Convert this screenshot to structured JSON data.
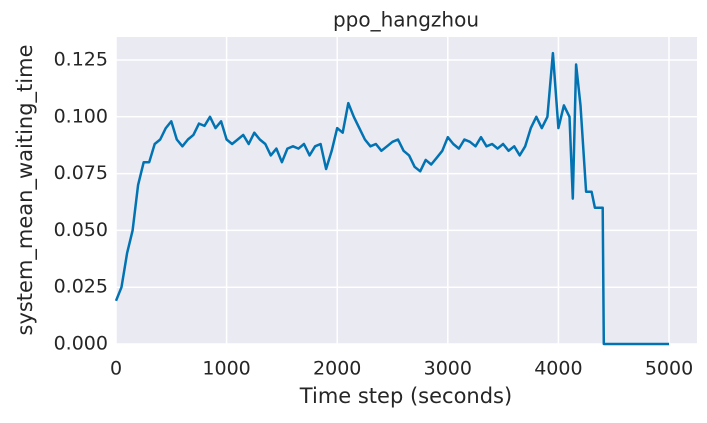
{
  "chart_data": {
    "type": "line",
    "title": "ppo_hangzhou",
    "x_label": "Time step (seconds)",
    "y_label": "system_mean_waiting_time",
    "x": [
      0,
      50,
      100,
      150,
      200,
      250,
      300,
      350,
      400,
      450,
      500,
      550,
      600,
      650,
      700,
      750,
      800,
      850,
      900,
      950,
      1000,
      1050,
      1100,
      1150,
      1200,
      1250,
      1300,
      1350,
      1400,
      1450,
      1500,
      1550,
      1600,
      1650,
      1700,
      1750,
      1800,
      1850,
      1900,
      1950,
      2000,
      2050,
      2100,
      2150,
      2200,
      2250,
      2300,
      2350,
      2400,
      2450,
      2500,
      2550,
      2600,
      2650,
      2700,
      2750,
      2800,
      2850,
      2900,
      2950,
      3000,
      3050,
      3100,
      3150,
      3200,
      3250,
      3300,
      3350,
      3400,
      3450,
      3500,
      3550,
      3600,
      3650,
      3700,
      3750,
      3800,
      3850,
      3900,
      3950,
      4000,
      4050,
      4100,
      4130,
      4160,
      4200,
      4250,
      4300,
      4330,
      4400,
      4410,
      5000
    ],
    "series": [
      {
        "name": "ppo_hangzhou",
        "color": "#0173b2",
        "values": [
          0.019,
          0.025,
          0.04,
          0.05,
          0.07,
          0.08,
          0.08,
          0.088,
          0.09,
          0.095,
          0.098,
          0.09,
          0.087,
          0.09,
          0.092,
          0.097,
          0.096,
          0.1,
          0.095,
          0.098,
          0.09,
          0.088,
          0.09,
          0.092,
          0.088,
          0.093,
          0.09,
          0.088,
          0.083,
          0.086,
          0.08,
          0.086,
          0.087,
          0.086,
          0.088,
          0.083,
          0.087,
          0.088,
          0.077,
          0.085,
          0.095,
          0.093,
          0.106,
          0.1,
          0.095,
          0.09,
          0.087,
          0.088,
          0.085,
          0.087,
          0.089,
          0.09,
          0.085,
          0.083,
          0.078,
          0.076,
          0.081,
          0.079,
          0.082,
          0.085,
          0.091,
          0.088,
          0.086,
          0.09,
          0.089,
          0.087,
          0.091,
          0.087,
          0.088,
          0.086,
          0.088,
          0.085,
          0.087,
          0.083,
          0.087,
          0.095,
          0.1,
          0.095,
          0.1,
          0.128,
          0.095,
          0.105,
          0.1,
          0.064,
          0.123,
          0.105,
          0.067,
          0.067,
          0.06,
          0.06,
          0,
          0
        ]
      }
    ],
    "xlim": [
      0,
      5253
    ],
    "ylim": [
      0,
      0.1351
    ],
    "xticks": [
      0,
      1000,
      2000,
      3000,
      4000,
      5000
    ],
    "yticks": [
      {
        "value": 0,
        "label": "0.000"
      },
      {
        "value": 0.025,
        "label": "0.025"
      },
      {
        "value": 0.05,
        "label": "0.050"
      },
      {
        "value": 0.075,
        "label": "0.075"
      },
      {
        "value": 0.1,
        "label": "0.100"
      },
      {
        "value": 0.125,
        "label": "0.125"
      }
    ],
    "grid": true
  }
}
